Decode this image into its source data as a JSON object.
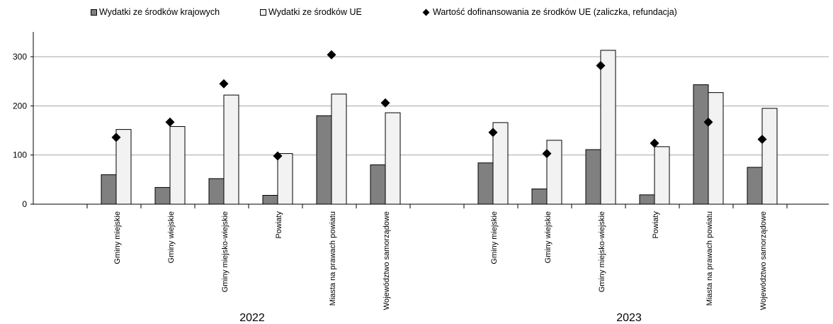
{
  "chart_data": {
    "type": "bar",
    "title": "",
    "xlabel": "",
    "ylabel": "",
    "ylim": [
      0,
      330
    ],
    "yticks": [
      0,
      100,
      200,
      300
    ],
    "grid": true,
    "legend_position": "top",
    "colors": {
      "domestic": "#808080",
      "eu": "#f2f2f2",
      "marker": "#000000",
      "grid": "#a6a6a6"
    },
    "groups": [
      {
        "label": "2022",
        "categories": [
          "Gminy miejskie",
          "Gminy wiejskie",
          "Gminy miejsko-wiejskie",
          "Powiaty",
          "Miasta na prawach powiatu",
          "Województwo samorządowe"
        ]
      },
      {
        "label": "2023",
        "categories": [
          "Gminy miejskie",
          "Gminy wiejskie",
          "Gminy miejsko-wiejskie",
          "Powiaty",
          "Miasta na prawach powiatu",
          "Województwo samorządowe"
        ]
      }
    ],
    "series": [
      {
        "name": "Wydatki ze środków krajowych",
        "kind": "bar",
        "values": [
          [
            60,
            34,
            52,
            18,
            180,
            80
          ],
          [
            84,
            31,
            111,
            19,
            243,
            75
          ]
        ]
      },
      {
        "name": "Wydatki ze środków UE",
        "kind": "bar",
        "values": [
          [
            152,
            158,
            222,
            103,
            224,
            186
          ],
          [
            166,
            130,
            313,
            117,
            227,
            195
          ]
        ]
      },
      {
        "name": "Wartość dofinansowania ze środków UE (zaliczka, refundacja)",
        "kind": "marker",
        "values": [
          [
            136,
            167,
            245,
            98,
            304,
            206
          ],
          [
            146,
            103,
            282,
            124,
            167,
            132
          ]
        ]
      }
    ]
  }
}
